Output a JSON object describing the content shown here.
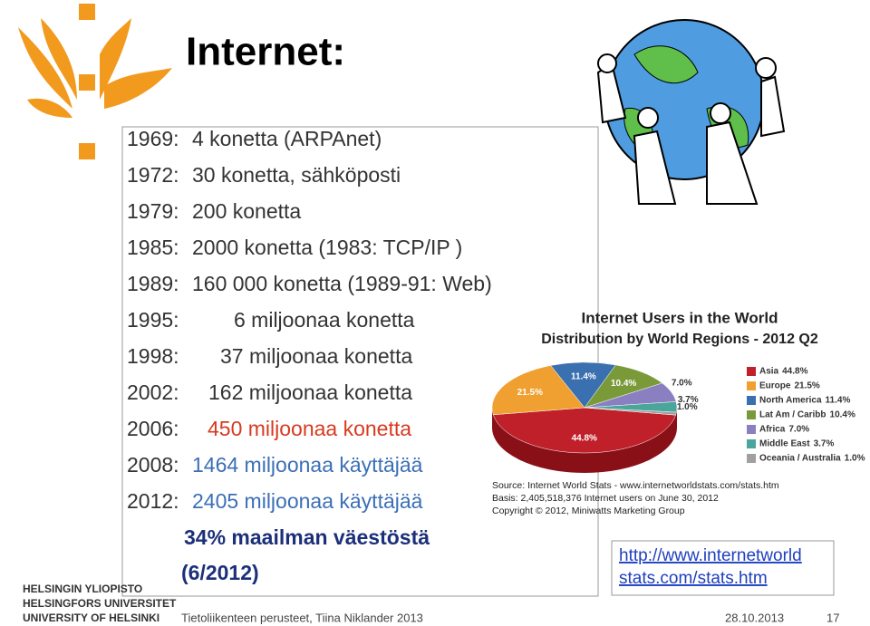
{
  "header": {
    "title": "Internet:"
  },
  "timeline": [
    {
      "year": "1969:",
      "text": "4  konetta (ARPAnet)"
    },
    {
      "year": "1972:",
      "text": "30 konetta, sähköposti"
    },
    {
      "year": "1979:",
      "text": "200 konetta"
    },
    {
      "year": "1985:",
      "text": "2000 konetta (1983: TCP/IP )"
    },
    {
      "year": "1989:",
      "text": "160 000 konetta (1989-91: Web)"
    },
    {
      "year": "1995:",
      "text": "6 miljoonaa konetta"
    },
    {
      "year": "1998:",
      "text": "37 miljoonaa konetta"
    },
    {
      "year": "2002:",
      "text": "162 miljoonaa konetta"
    },
    {
      "year": "2006:",
      "text": "450 miljoonaa konetta"
    },
    {
      "year": "2008:",
      "text": "1464 miljoonaa käyttäjää"
    },
    {
      "year": "2012:",
      "text": "2405 miljoonaa käyttäjää"
    }
  ],
  "population_note": "34% maailman väestöstä",
  "population_date": "(6/2012)",
  "chart_data": {
    "type": "pie",
    "title": "Internet Users in the World",
    "subtitle": "Distribution by World Regions - 2012 Q2",
    "categories": [
      "Asia",
      "Europe",
      "North America",
      "Lat Am / Caribb",
      "Africa",
      "Middle East",
      "Oceania / Australia"
    ],
    "values": [
      44.8,
      21.5,
      11.4,
      10.4,
      7.0,
      3.7,
      1.0
    ],
    "value_labels": [
      "44.8%",
      "21.5%",
      "11.4%",
      "10.4%",
      "7.0%",
      "3.7%",
      "1.0%"
    ],
    "colors": [
      "#c0202a",
      "#f0a030",
      "#3a6fb0",
      "#7a9a3a",
      "#8a7fc0",
      "#4aa59a",
      "#a0a0a0"
    ],
    "source": [
      "Source: Internet World Stats - www.internetworldstats.com/stats.htm",
      "Basis: 2,405,518,376 Internet users on June 30, 2012",
      "Copyright © 2012, Miniwatts Marketing Group"
    ]
  },
  "link": [
    "http://www.internetworld",
    "stats.com/stats.htm"
  ],
  "logo": [
    "HELSINGIN YLIOPISTO",
    "HELSINGFORS UNIVERSITET",
    "UNIVERSITY OF HELSINKI"
  ],
  "footer": {
    "course": "Tietoliikenteen perusteet, Tiina Niklander 2013",
    "date": "28.10.2013",
    "page": "17"
  }
}
